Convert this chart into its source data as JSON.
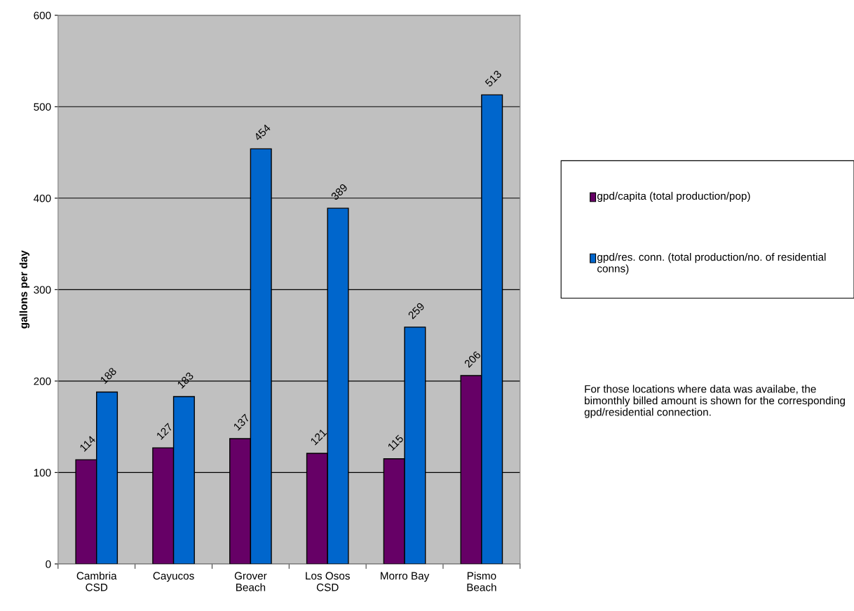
{
  "chart_data": {
    "type": "bar",
    "ylabel": "gallons per day",
    "categories": [
      "Cambria\nCSD",
      "Cayucos",
      "Grover\nBeach",
      "Los Osos\nCSD",
      "Morro Bay",
      "Pismo\nBeach"
    ],
    "series": [
      {
        "name": "gpd/capita (total production/pop)",
        "color": "#660066",
        "values": [
          114,
          127,
          137,
          121,
          115,
          206
        ]
      },
      {
        "name": "gpd/res. conn. (total production/no. of residential conns)",
        "color": "#0066cc",
        "values": [
          188,
          183,
          454,
          389,
          259,
          513
        ]
      }
    ],
    "ylim": [
      0,
      600
    ],
    "yticks": [
      0,
      100,
      200,
      300,
      400,
      500,
      600
    ],
    "grid": "y",
    "legend": "right",
    "data_labels": true,
    "annotations": [
      "For those locations where data was availabe, the bimonthly billed amount is shown for the corresponding gpd/residential connection."
    ]
  }
}
